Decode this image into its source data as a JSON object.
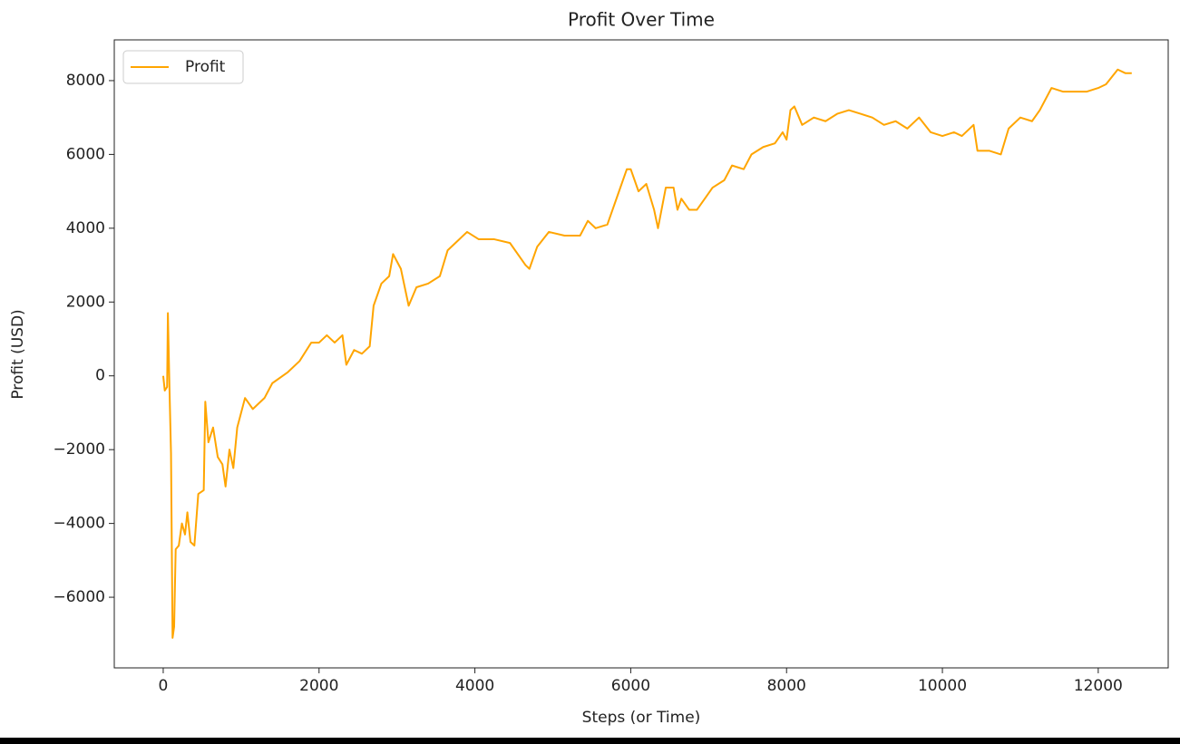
{
  "chart_data": {
    "type": "line",
    "title": "Profit Over Time",
    "xlabel": "Steps (or Time)",
    "ylabel": "Profit (USD)",
    "x": [
      0,
      20,
      50,
      60,
      80,
      100,
      120,
      140,
      160,
      200,
      240,
      280,
      310,
      350,
      400,
      450,
      520,
      540,
      580,
      640,
      700,
      760,
      800,
      850,
      900,
      950,
      1050,
      1150,
      1300,
      1400,
      1600,
      1750,
      1900,
      2000,
      2100,
      2200,
      2300,
      2350,
      2450,
      2550,
      2650,
      2700,
      2800,
      2900,
      2950,
      3050,
      3150,
      3250,
      3400,
      3550,
      3650,
      3750,
      3900,
      4050,
      4250,
      4450,
      4650,
      4700,
      4800,
      4950,
      5150,
      5350,
      5450,
      5550,
      5700,
      5850,
      5950,
      6000,
      6100,
      6200,
      6300,
      6350,
      6450,
      6550,
      6600,
      6650,
      6750,
      6850,
      6950,
      7050,
      7200,
      7300,
      7450,
      7550,
      7700,
      7850,
      7950,
      8000,
      8050,
      8100,
      8200,
      8350,
      8500,
      8650,
      8800,
      8950,
      9100,
      9250,
      9400,
      9550,
      9700,
      9850,
      10000,
      10150,
      10250,
      10400,
      10450,
      10600,
      10750,
      10850,
      11000,
      11150,
      11250,
      11400,
      11550,
      11700,
      11850,
      12000,
      12100,
      12250,
      12350,
      12430
    ],
    "series": [
      {
        "name": "Profit",
        "color": "#ffa500",
        "values": [
          0,
          -400,
          -300,
          1700,
          -300,
          -2100,
          -7100,
          -6800,
          -4700,
          -4600,
          -4000,
          -4300,
          -3700,
          -4500,
          -4600,
          -3200,
          -3100,
          -700,
          -1800,
          -1400,
          -2200,
          -2400,
          -3000,
          -2000,
          -2500,
          -1400,
          -600,
          -900,
          -600,
          -200,
          100,
          400,
          900,
          900,
          1100,
          900,
          1100,
          300,
          700,
          600,
          800,
          1900,
          2500,
          2700,
          3300,
          2900,
          1900,
          2400,
          2500,
          2700,
          3400,
          3600,
          3900,
          3700,
          3700,
          3600,
          3000,
          2900,
          3500,
          3900,
          3800,
          3800,
          4200,
          4000,
          4100,
          5000,
          5600,
          5600,
          5000,
          5200,
          4500,
          4000,
          5100,
          5100,
          4500,
          4800,
          4500,
          4500,
          4800,
          5100,
          5300,
          5700,
          5600,
          6000,
          6200,
          6300,
          6600,
          6400,
          7200,
          7300,
          6800,
          7000,
          6900,
          7100,
          7200,
          7100,
          7000,
          6800,
          6900,
          6700,
          7000,
          6600,
          6500,
          6600,
          6500,
          6800,
          6100,
          6100,
          6000,
          6700,
          7000,
          6900,
          7200,
          7800,
          7700,
          7700,
          7700,
          7800,
          7900,
          8300,
          8200,
          8200
        ]
      }
    ],
    "xlim": [
      -628,
      12898
    ],
    "ylim": [
      -7914,
      9104
    ],
    "xticks": [
      0,
      2000,
      4000,
      6000,
      8000,
      10000,
      12000
    ],
    "yticks": [
      {
        "value": -6000,
        "label": "−6000"
      },
      {
        "value": -4000,
        "label": "−4000"
      },
      {
        "value": -2000,
        "label": "−2000"
      },
      0,
      2000,
      4000,
      6000,
      8000
    ],
    "legend": "upper left",
    "grid": false
  }
}
